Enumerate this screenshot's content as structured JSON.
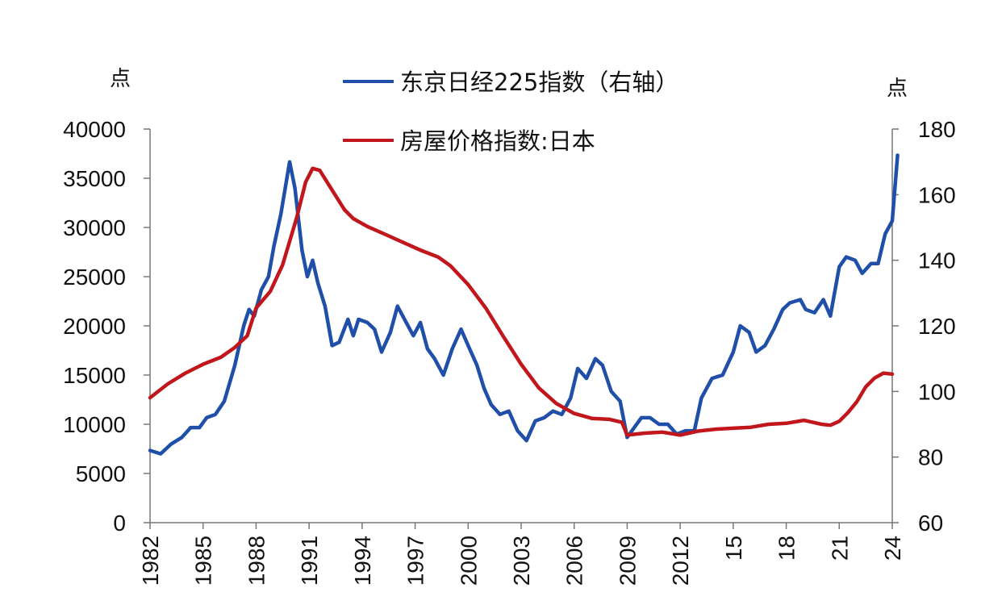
{
  "chart_data": {
    "type": "line",
    "left_unit": "点",
    "right_unit": "点",
    "x_ticks": [
      "1982",
      "1985",
      "1988",
      "1991",
      "1994",
      "1997",
      "2000",
      "2003",
      "2006",
      "2009",
      "2012",
      "15",
      "18",
      "21",
      "24"
    ],
    "x_range": [
      1982,
      2024
    ],
    "y_left": {
      "range": [
        0,
        40000
      ],
      "ticks": [
        0,
        5000,
        10000,
        15000,
        20000,
        25000,
        30000,
        35000,
        40000
      ]
    },
    "y_right": {
      "range": [
        60,
        180
      ],
      "ticks": [
        60,
        80,
        100,
        120,
        140,
        160,
        180
      ]
    },
    "legend_position": "top-center",
    "series": [
      {
        "name": "东京日经225指数（右轴）",
        "axis": "right",
        "color": "#1f4fa8",
        "points": [
          [
            1982.0,
            82
          ],
          [
            1982.6,
            81
          ],
          [
            1983.2,
            84
          ],
          [
            1983.8,
            86
          ],
          [
            1984.3,
            89
          ],
          [
            1984.8,
            89
          ],
          [
            1985.2,
            92
          ],
          [
            1985.7,
            93
          ],
          [
            1986.2,
            97
          ],
          [
            1986.8,
            108
          ],
          [
            1987.3,
            120
          ],
          [
            1987.6,
            125
          ],
          [
            1987.9,
            123
          ],
          [
            1988.3,
            131
          ],
          [
            1988.7,
            135
          ],
          [
            1989.0,
            144
          ],
          [
            1989.4,
            154
          ],
          [
            1989.9,
            170
          ],
          [
            1990.2,
            162
          ],
          [
            1990.6,
            143
          ],
          [
            1990.9,
            135
          ],
          [
            1991.2,
            140
          ],
          [
            1991.5,
            133
          ],
          [
            1991.9,
            126
          ],
          [
            1992.3,
            114
          ],
          [
            1992.7,
            115
          ],
          [
            1993.2,
            122
          ],
          [
            1993.5,
            117
          ],
          [
            1993.8,
            122
          ],
          [
            1994.3,
            121
          ],
          [
            1994.7,
            119
          ],
          [
            1995.1,
            112
          ],
          [
            1995.6,
            118
          ],
          [
            1996.0,
            126
          ],
          [
            1996.5,
            121
          ],
          [
            1996.9,
            117
          ],
          [
            1997.3,
            121
          ],
          [
            1997.7,
            113
          ],
          [
            1998.1,
            110
          ],
          [
            1998.6,
            105
          ],
          [
            1999.1,
            113
          ],
          [
            1999.6,
            119
          ],
          [
            2000.0,
            114
          ],
          [
            2000.5,
            108
          ],
          [
            2000.9,
            101
          ],
          [
            2001.3,
            96
          ],
          [
            2001.8,
            93
          ],
          [
            2002.3,
            94
          ],
          [
            2002.8,
            88
          ],
          [
            2003.3,
            85
          ],
          [
            2003.8,
            91
          ],
          [
            2004.3,
            92
          ],
          [
            2004.8,
            94
          ],
          [
            2005.3,
            93
          ],
          [
            2005.8,
            98
          ],
          [
            2006.2,
            107
          ],
          [
            2006.7,
            104
          ],
          [
            2007.2,
            110
          ],
          [
            2007.6,
            108
          ],
          [
            2008.1,
            100
          ],
          [
            2008.6,
            97
          ],
          [
            2009.0,
            86
          ],
          [
            2009.4,
            89
          ],
          [
            2009.8,
            92
          ],
          [
            2010.3,
            92
          ],
          [
            2010.8,
            90
          ],
          [
            2011.3,
            90
          ],
          [
            2011.8,
            87
          ],
          [
            2012.3,
            88
          ],
          [
            2012.8,
            88
          ],
          [
            2013.2,
            98
          ],
          [
            2013.8,
            104
          ],
          [
            2014.4,
            105
          ],
          [
            2015.0,
            112
          ],
          [
            2015.4,
            120
          ],
          [
            2015.9,
            118
          ],
          [
            2016.3,
            112
          ],
          [
            2016.8,
            114
          ],
          [
            2017.3,
            119
          ],
          [
            2017.8,
            125
          ],
          [
            2018.2,
            127
          ],
          [
            2018.8,
            128
          ],
          [
            2019.1,
            125
          ],
          [
            2019.6,
            124
          ],
          [
            2020.1,
            128
          ],
          [
            2020.5,
            123
          ],
          [
            2021.0,
            138
          ],
          [
            2021.4,
            141
          ],
          [
            2021.9,
            140
          ],
          [
            2022.3,
            136
          ],
          [
            2022.8,
            139
          ],
          [
            2023.2,
            139
          ],
          [
            2023.6,
            148
          ],
          [
            2024.0,
            152
          ],
          [
            2024.3,
            172
          ]
        ]
      },
      {
        "name": "房屋价格指数:日本",
        "axis": "left",
        "color": "#c0161c",
        "points": [
          [
            1982.0,
            12700
          ],
          [
            1983.0,
            14100
          ],
          [
            1984.0,
            15200
          ],
          [
            1985.0,
            16100
          ],
          [
            1986.0,
            16800
          ],
          [
            1986.8,
            17800
          ],
          [
            1987.5,
            19000
          ],
          [
            1988.0,
            21800
          ],
          [
            1988.8,
            23500
          ],
          [
            1989.5,
            26200
          ],
          [
            1990.3,
            31000
          ],
          [
            1990.8,
            34600
          ],
          [
            1991.2,
            36000
          ],
          [
            1991.6,
            35800
          ],
          [
            1992.3,
            33800
          ],
          [
            1993.0,
            31800
          ],
          [
            1993.5,
            30900
          ],
          [
            1994.3,
            30100
          ],
          [
            1995.3,
            29300
          ],
          [
            1996.3,
            28500
          ],
          [
            1997.3,
            27700
          ],
          [
            1998.3,
            27000
          ],
          [
            1999.0,
            26100
          ],
          [
            2000.0,
            24200
          ],
          [
            2001.0,
            21800
          ],
          [
            2002.0,
            18900
          ],
          [
            2003.0,
            16100
          ],
          [
            2004.0,
            13700
          ],
          [
            2005.0,
            12100
          ],
          [
            2006.0,
            11100
          ],
          [
            2007.0,
            10600
          ],
          [
            2008.0,
            10500
          ],
          [
            2008.7,
            10200
          ],
          [
            2009.0,
            8900
          ],
          [
            2010.0,
            9100
          ],
          [
            2011.0,
            9200
          ],
          [
            2012.0,
            8900
          ],
          [
            2013.0,
            9300
          ],
          [
            2014.0,
            9500
          ],
          [
            2015.0,
            9600
          ],
          [
            2016.0,
            9700
          ],
          [
            2017.0,
            10000
          ],
          [
            2018.0,
            10100
          ],
          [
            2019.0,
            10400
          ],
          [
            2020.0,
            10000
          ],
          [
            2020.5,
            9900
          ],
          [
            2021.0,
            10300
          ],
          [
            2021.5,
            11200
          ],
          [
            2022.0,
            12300
          ],
          [
            2022.5,
            13800
          ],
          [
            2023.0,
            14700
          ],
          [
            2023.5,
            15200
          ],
          [
            2024.0,
            15100
          ]
        ]
      }
    ]
  }
}
